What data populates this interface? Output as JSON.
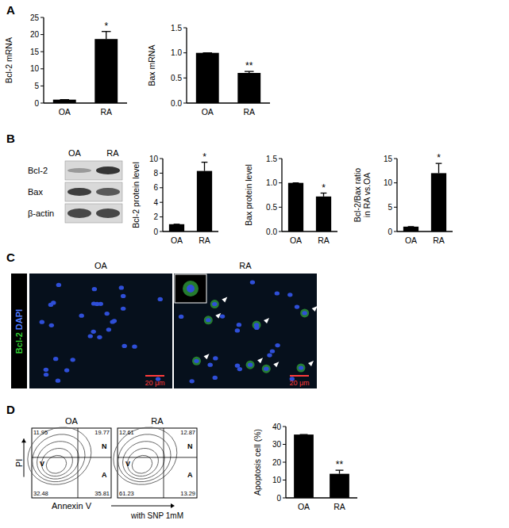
{
  "chart_data": [
    {
      "type": "bar",
      "y_label": "Bcl-2 mRNA",
      "categories": [
        "OA",
        "RA"
      ],
      "values": [
        1,
        18.7
      ],
      "errors": [
        0,
        2.2
      ],
      "color": "#000000",
      "ylim": [
        0,
        25
      ],
      "yticks": [
        0,
        5,
        10,
        15,
        20,
        25
      ],
      "annotations": [
        {
          "text": "*",
          "x": "RA"
        }
      ]
    },
    {
      "type": "bar",
      "y_label": "Bax mRNA",
      "categories": [
        "OA",
        "RA"
      ],
      "values": [
        1,
        0.6
      ],
      "errors": [
        0,
        0.03
      ],
      "color": "#000000",
      "ylim": [
        0,
        1.5
      ],
      "yticks": [
        {
          "value": 0,
          "label": "0.0"
        },
        0.5,
        {
          "value": 1,
          "label": "1.0"
        },
        1.5
      ],
      "annotations": [
        {
          "text": "**",
          "x": "RA"
        }
      ]
    },
    {
      "type": "bar",
      "y_label": "Bcl-2 protein level",
      "categories": [
        "OA",
        "RA"
      ],
      "values": [
        1,
        8.3
      ],
      "errors": [
        0,
        1.2
      ],
      "color": "#000000",
      "ylim": [
        0,
        10
      ],
      "yticks": [
        0,
        2,
        4,
        6,
        8,
        10
      ],
      "annotations": [
        {
          "text": "*",
          "x": "RA"
        }
      ]
    },
    {
      "type": "bar",
      "y_label": "Bax protein level",
      "categories": [
        "OA",
        "RA"
      ],
      "values": [
        1,
        0.72
      ],
      "errors": [
        0,
        0.07
      ],
      "color": "#000000",
      "ylim": [
        0,
        1.5
      ],
      "yticks": [
        {
          "value": 0,
          "label": "0.0"
        },
        0.5,
        {
          "value": 1,
          "label": "1.0"
        },
        1.5
      ],
      "annotations": [
        {
          "text": "*",
          "x": "RA"
        }
      ]
    },
    {
      "type": "bar",
      "y_label": [
        "Bcl-2/Bax ratio",
        "in RA vs.OA"
      ],
      "categories": [
        "OA",
        "RA"
      ],
      "values": [
        1,
        12
      ],
      "errors": [
        0,
        2
      ],
      "color": "#000000",
      "ylim": [
        0,
        15
      ],
      "yticks": [
        0,
        5,
        10,
        15
      ],
      "annotations": [
        {
          "text": "*",
          "x": "RA"
        }
      ]
    },
    {
      "type": "bar",
      "y_label": "Apoptosis cell (%)",
      "categories": [
        "OA",
        "RA"
      ],
      "values": [
        35.5,
        13.5
      ],
      "errors": [
        0,
        2
      ],
      "color": "#000000",
      "ylim": [
        0,
        40
      ],
      "yticks": [
        0,
        10,
        20,
        30,
        40
      ],
      "annotations": [
        {
          "text": "**",
          "x": "RA"
        }
      ]
    }
  ],
  "panels": [
    "A",
    "B",
    "C",
    "D"
  ],
  "blot": {
    "columns": [
      "OA",
      "RA"
    ],
    "rows": [
      "Bcl-2",
      "Bax",
      "β-actin"
    ]
  },
  "micrographs": {
    "columns": [
      "OA",
      "RA"
    ],
    "stains": [
      "Bcl-2",
      "DAPI"
    ],
    "scale_bar": "20 μm"
  },
  "flow": {
    "y_label": "PI",
    "x_label": "Annexin V",
    "note": "with SNP 1mM",
    "quadrant_labels": [
      "V",
      "N",
      "A"
    ],
    "plots": [
      {
        "title": "OA",
        "upper_left": 11.95,
        "upper_right": 19.77,
        "lower_left": 32.48,
        "lower_right": 35.81
      },
      {
        "title": "RA",
        "upper_left": 12.61,
        "upper_right": 12.87,
        "lower_left": 61.23,
        "lower_right": 13.29
      }
    ]
  }
}
